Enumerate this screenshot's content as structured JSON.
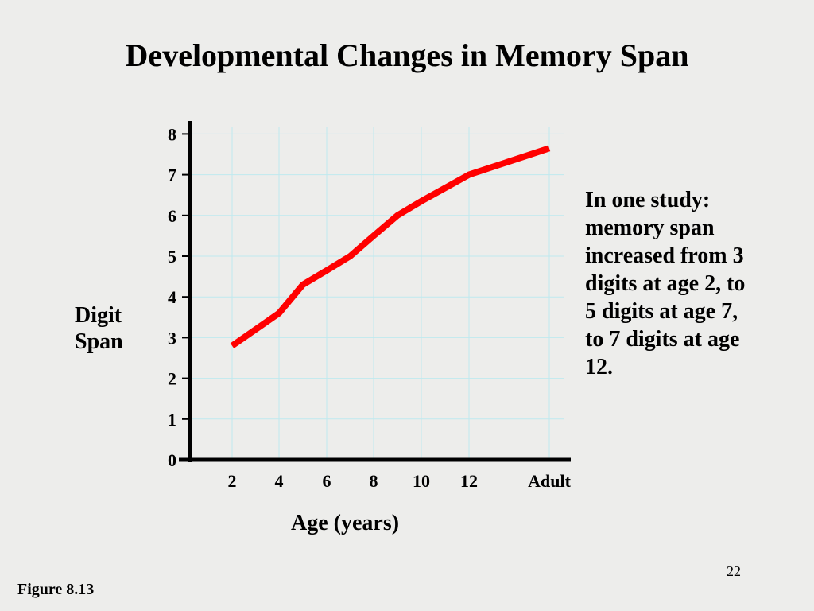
{
  "slide": {
    "title": "Developmental Changes in Memory Span",
    "y_axis_label_line1": "Digit",
    "y_axis_label_line2": "Span",
    "x_axis_label": "Age (years)",
    "note": "In one study: memory span increased from 3 digits at age 2, to 5 digits at age 7, to 7 digits at age 12.",
    "page_number": "22",
    "figure_label": "Figure 8.13"
  },
  "colors": {
    "background": "#ededeb",
    "grid": "#bfe9ef",
    "line": "#ff0000",
    "axis": "#000000"
  },
  "chart_data": {
    "type": "line",
    "title": "Developmental Changes in Memory Span",
    "xlabel": "Age (years)",
    "ylabel": "Digit Span",
    "x_tick_labels": [
      "2",
      "4",
      "6",
      "8",
      "10",
      "12",
      "Adult"
    ],
    "y_tick_labels": [
      "0",
      "1",
      "2",
      "3",
      "4",
      "5",
      "6",
      "7",
      "8"
    ],
    "ylim": [
      0,
      8
    ],
    "grid": true,
    "series": [
      {
        "x": [
          "2",
          "4",
          "5",
          "6",
          "7",
          "8",
          "9",
          "10",
          "12",
          "Adult"
        ],
        "values": [
          2.8,
          3.6,
          4.3,
          4.65,
          5.0,
          5.5,
          6.0,
          6.35,
          7.0,
          7.65
        ]
      }
    ]
  }
}
